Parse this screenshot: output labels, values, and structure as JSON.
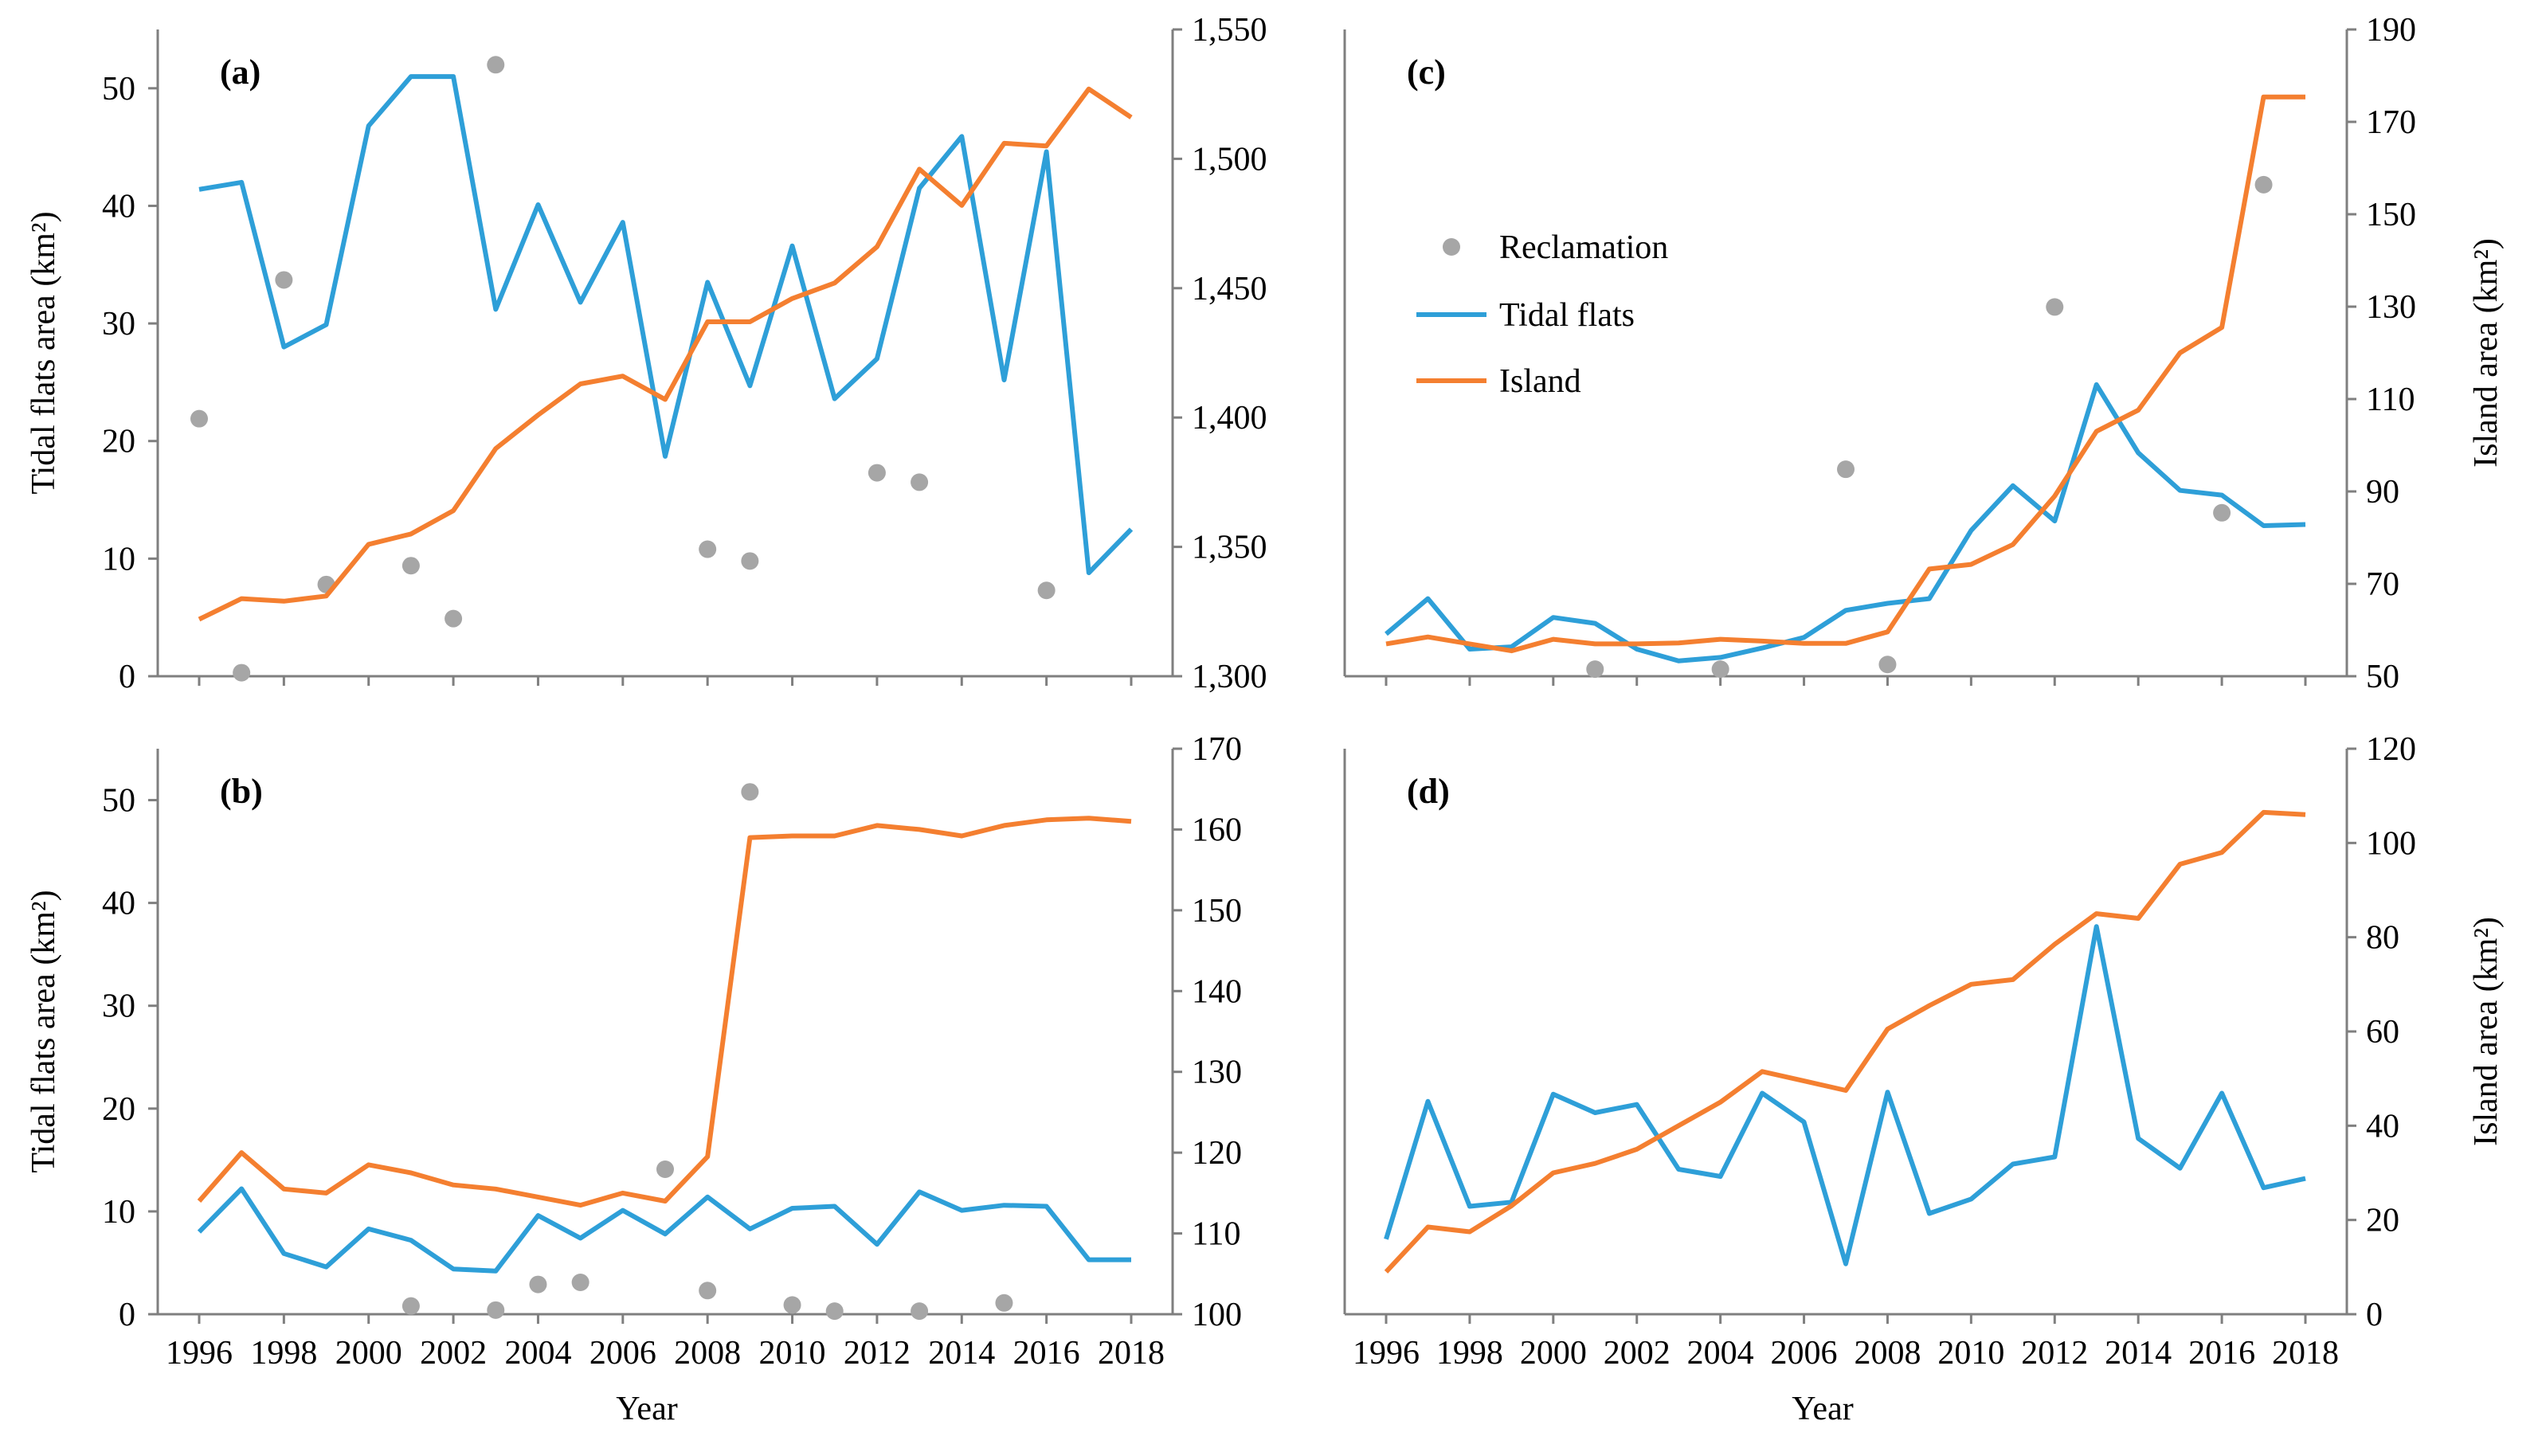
{
  "x_axis_title": "Year",
  "legend": {
    "reclamation": "Reclamation",
    "tidal_flats": "Tidal flats",
    "island": "Island"
  },
  "colors": {
    "tidal_flats": "#2e9fd8",
    "island": "#f47f30",
    "reclamation": "#a6a6a6"
  },
  "chart_data": [
    {
      "type": "line",
      "panel": "(a)",
      "ylabel": "Tidal flats area (km²)",
      "ylabel_right": "",
      "ylim": [
        0,
        55
      ],
      "yticks": [
        0,
        10,
        20,
        30,
        40,
        50
      ],
      "ytick_labels": [
        "0",
        "10",
        "20",
        "30",
        "40",
        "50"
      ],
      "y2lim": [
        1300,
        1550
      ],
      "y2ticks": [
        1300,
        1350,
        1400,
        1450,
        1500,
        1550
      ],
      "y2tick_labels": [
        "1,300",
        "1,350",
        "1,400",
        "1,450",
        "1,500",
        "1,550"
      ],
      "xlim": [
        1996,
        2018
      ],
      "xticks": [
        1996,
        1998,
        2000,
        2002,
        2004,
        2006,
        2008,
        2010,
        2012,
        2014,
        2016,
        2018
      ],
      "xtick_labels": [
        "1996",
        "1998",
        "2000",
        "2002",
        "2004",
        "2006",
        "2008",
        "2010",
        "2012",
        "2014",
        "2016",
        "2018"
      ],
      "show_xticks": false,
      "series": [
        {
          "name": "Tidal flats",
          "axis": "left",
          "x": [
            1996,
            1997,
            1998,
            1999,
            2000,
            2001,
            2002,
            2003,
            2004,
            2005,
            2006,
            2007,
            2008,
            2009,
            2010,
            2011,
            2012,
            2013,
            2014,
            2015,
            2016,
            2017,
            2018
          ],
          "values": [
            41.4,
            42.0,
            28.0,
            29.9,
            46.8,
            51.0,
            51.0,
            31.2,
            40.1,
            31.8,
            38.6,
            18.7,
            33.5,
            24.7,
            36.6,
            23.6,
            27.0,
            41.5,
            45.9,
            25.2,
            44.6,
            8.8,
            12.5
          ]
        },
        {
          "name": "Island",
          "axis": "right",
          "x": [
            1996,
            1997,
            1998,
            1999,
            2000,
            2001,
            2002,
            2003,
            2004,
            2005,
            2006,
            2007,
            2008,
            2009,
            2010,
            2011,
            2012,
            2013,
            2014,
            2015,
            2016,
            2017,
            2018
          ],
          "values": [
            1322,
            1330,
            1329,
            1331,
            1351,
            1355,
            1364,
            1388,
            1401,
            1413,
            1416,
            1407,
            1437,
            1437,
            1446,
            1452,
            1466,
            1496,
            1482,
            1506,
            1505,
            1527,
            1516
          ]
        },
        {
          "name": "Reclamation",
          "axis": "left",
          "style": "scatter",
          "x": [
            1996,
            1997,
            1998,
            1999,
            2001,
            2002,
            2003,
            2008,
            2009,
            2012,
            2013,
            2016
          ],
          "values": [
            21.9,
            0.3,
            33.7,
            7.8,
            9.4,
            4.9,
            52.0,
            10.8,
            9.8,
            17.3,
            16.5,
            7.3
          ]
        }
      ]
    },
    {
      "type": "line",
      "panel": "(b)",
      "ylabel": "Tidal flats area (km²)",
      "ylabel_right": "",
      "ylim": [
        0,
        55
      ],
      "yticks": [
        0,
        10,
        20,
        30,
        40,
        50
      ],
      "ytick_labels": [
        "0",
        "10",
        "20",
        "30",
        "40",
        "50"
      ],
      "y2lim": [
        100,
        170
      ],
      "y2ticks": [
        100,
        110,
        120,
        130,
        140,
        150,
        160,
        170
      ],
      "y2tick_labels": [
        "100",
        "110",
        "120",
        "130",
        "140",
        "150",
        "160",
        "170"
      ],
      "xlim": [
        1996,
        2018
      ],
      "xticks": [
        1996,
        1998,
        2000,
        2002,
        2004,
        2006,
        2008,
        2010,
        2012,
        2014,
        2016,
        2018
      ],
      "xtick_labels": [
        "1996",
        "1998",
        "2000",
        "2002",
        "2004",
        "2006",
        "2008",
        "2010",
        "2012",
        "2014",
        "2016",
        "2018"
      ],
      "show_xticks": true,
      "series": [
        {
          "name": "Tidal flats",
          "axis": "left",
          "x": [
            1996,
            1997,
            1998,
            1999,
            2000,
            2001,
            2002,
            2003,
            2004,
            2005,
            2006,
            2007,
            2008,
            2009,
            2010,
            2011,
            2012,
            2013,
            2014,
            2015,
            2016,
            2017,
            2018
          ],
          "values": [
            8.0,
            12.2,
            5.9,
            4.6,
            8.3,
            7.2,
            4.4,
            4.2,
            9.6,
            7.4,
            10.1,
            7.8,
            11.4,
            8.3,
            10.3,
            10.5,
            6.8,
            11.9,
            10.1,
            10.6,
            10.5,
            5.3,
            5.3
          ]
        },
        {
          "name": "Island",
          "axis": "right",
          "x": [
            1996,
            1997,
            1998,
            1999,
            2000,
            2001,
            2002,
            2003,
            2004,
            2005,
            2006,
            2007,
            2008,
            2009,
            2010,
            2011,
            2012,
            2013,
            2014,
            2015,
            2016,
            2017,
            2018
          ],
          "values": [
            114,
            120,
            115.5,
            115,
            118.5,
            117.5,
            116,
            115.5,
            114.5,
            113.5,
            115,
            114,
            119.5,
            159,
            159.2,
            159.2,
            160.5,
            160,
            159.2,
            160.5,
            161.2,
            161.4,
            161
          ]
        },
        {
          "name": "Reclamation",
          "axis": "left",
          "style": "scatter",
          "x": [
            2001,
            2003,
            2004,
            2005,
            2007,
            2008,
            2009,
            2010,
            2011,
            2013,
            2015
          ],
          "values": [
            0.8,
            0.4,
            2.9,
            3.1,
            14.1,
            2.3,
            50.8,
            0.9,
            0.3,
            0.3,
            1.1
          ]
        }
      ]
    },
    {
      "type": "line",
      "panel": "(c)",
      "ylabel": "",
      "ylabel_right": "Island area (km²)",
      "ylim": [
        0,
        55
      ],
      "yticks": [],
      "ytick_labels": [],
      "y2lim": [
        50,
        190
      ],
      "y2ticks": [
        50,
        70,
        90,
        110,
        130,
        150,
        170,
        190
      ],
      "y2tick_labels": [
        "50",
        "70",
        "90",
        "110",
        "130",
        "150",
        "170",
        "190"
      ],
      "xlim": [
        1996,
        2018
      ],
      "xticks": [
        1996,
        1998,
        2000,
        2002,
        2004,
        2006,
        2008,
        2010,
        2012,
        2014,
        2016,
        2018
      ],
      "xtick_labels": [
        "1996",
        "1998",
        "2000",
        "2002",
        "2004",
        "2006",
        "2008",
        "2010",
        "2012",
        "2014",
        "2016",
        "2018"
      ],
      "show_xticks": false,
      "series": [
        {
          "name": "Tidal flats",
          "axis": "left",
          "x": [
            1996,
            1997,
            1998,
            1999,
            2000,
            2001,
            2002,
            2003,
            2004,
            2005,
            2006,
            2007,
            2008,
            2009,
            2010,
            2011,
            2012,
            2013,
            2014,
            2015,
            2016,
            2017,
            2018
          ],
          "values": [
            3.6,
            6.6,
            2.3,
            2.5,
            5.0,
            4.5,
            2.3,
            1.3,
            1.6,
            2.4,
            3.3,
            5.6,
            6.2,
            6.6,
            12.4,
            16.2,
            13.2,
            24.8,
            19.0,
            15.8,
            15.4,
            12.8,
            12.9
          ]
        },
        {
          "name": "Island",
          "axis": "right",
          "x": [
            1996,
            1997,
            1998,
            1999,
            2000,
            2001,
            2002,
            2003,
            2004,
            2005,
            2006,
            2007,
            2008,
            2009,
            2010,
            2011,
            2012,
            2013,
            2014,
            2015,
            2016,
            2017,
            2018
          ],
          "values": [
            57,
            58.5,
            57,
            55.5,
            58,
            57,
            57,
            57.2,
            58,
            57.6,
            57.1,
            57.1,
            59.6,
            73.2,
            74.2,
            78.5,
            89,
            103,
            107.6,
            120,
            125.5,
            175.4,
            175.4
          ]
        },
        {
          "name": "Reclamation",
          "axis": "left",
          "style": "scatter",
          "x": [
            2001,
            2004,
            2007,
            2008,
            2012,
            2016,
            2017
          ],
          "values": [
            0.6,
            0.6,
            17.6,
            1.0,
            31.4,
            13.9,
            41.8
          ]
        }
      ]
    },
    {
      "type": "line",
      "panel": "(d)",
      "ylabel": "",
      "ylabel_right": "Island area (km²)",
      "ylim": [
        0,
        55
      ],
      "yticks": [],
      "ytick_labels": [],
      "y2lim": [
        0,
        120
      ],
      "y2ticks": [
        0,
        20,
        40,
        60,
        80,
        100,
        120
      ],
      "y2tick_labels": [
        "0",
        "20",
        "40",
        "60",
        "80",
        "100",
        "120"
      ],
      "xlim": [
        1996,
        2018
      ],
      "xticks": [
        1996,
        1998,
        2000,
        2002,
        2004,
        2006,
        2008,
        2010,
        2012,
        2014,
        2016,
        2018
      ],
      "xtick_labels": [
        "1996",
        "1998",
        "2000",
        "2002",
        "2004",
        "2006",
        "2008",
        "2010",
        "2012",
        "2014",
        "2016",
        "2018"
      ],
      "show_xticks": true,
      "series": [
        {
          "name": "Tidal flats",
          "axis": "left",
          "x": [
            1996,
            1997,
            1998,
            1999,
            2000,
            2001,
            2002,
            2003,
            2004,
            2005,
            2006,
            2007,
            2008,
            2009,
            2010,
            2011,
            2012,
            2013,
            2014,
            2015,
            2016,
            2017,
            2018
          ],
          "values": [
            7.3,
            20.7,
            10.5,
            10.9,
            21.4,
            19.6,
            20.4,
            14.1,
            13.4,
            21.5,
            18.7,
            4.9,
            21.6,
            9.8,
            11.2,
            14.6,
            15.3,
            37.7,
            17.1,
            14.2,
            21.5,
            12.3,
            13.2
          ]
        },
        {
          "name": "Island",
          "axis": "right",
          "x": [
            1996,
            1997,
            1998,
            1999,
            2000,
            2001,
            2002,
            2003,
            2004,
            2005,
            2006,
            2007,
            2008,
            2009,
            2010,
            2011,
            2012,
            2013,
            2014,
            2015,
            2016,
            2017,
            2018
          ],
          "values": [
            9,
            18.5,
            17.5,
            23,
            30,
            32,
            35,
            40,
            45,
            51.5,
            49.5,
            47.5,
            60.5,
            65.5,
            70,
            71,
            78.5,
            85,
            84,
            95.5,
            98,
            106.5,
            106
          ]
        },
        {
          "name": "Reclamation",
          "axis": "left",
          "style": "scatter",
          "x": [],
          "values": []
        }
      ]
    }
  ]
}
